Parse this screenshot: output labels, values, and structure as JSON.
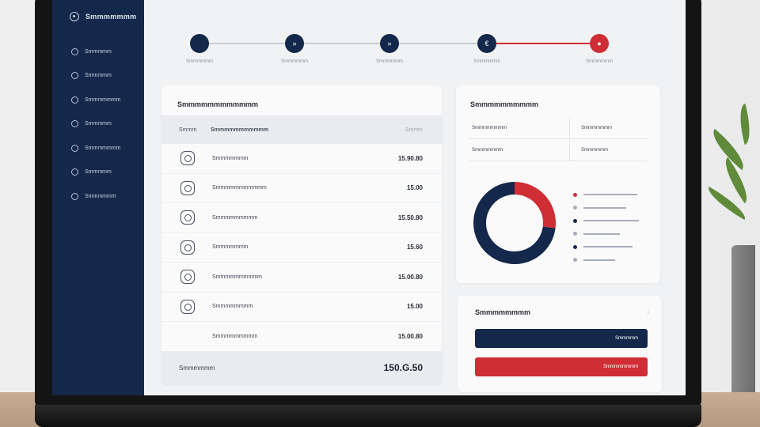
{
  "colors": {
    "navy": "#13284a",
    "accent": "#cf2e35",
    "muted": "#a7adb8"
  },
  "sidebar": {
    "brand": "Smmmmmmm",
    "items": [
      {
        "label": "Smmmmm",
        "icon": "circle-icon"
      },
      {
        "label": "Smmmmm",
        "icon": "circle-icon"
      },
      {
        "label": "Smmmmmmm",
        "icon": "circle-icon"
      },
      {
        "label": "Smmmmm",
        "icon": "circle-icon"
      },
      {
        "label": "Smmmmmmm",
        "icon": "circle-icon"
      },
      {
        "label": "Smmmmm",
        "icon": "circle-icon"
      },
      {
        "label": "Smmmmmm",
        "icon": "circle-icon"
      }
    ]
  },
  "stepper": {
    "steps": [
      {
        "label": "Smmmmmm",
        "symbol": "",
        "state": "done"
      },
      {
        "label": "Smmmmmm",
        "symbol": "»",
        "state": "done"
      },
      {
        "label": "Smmmmmm",
        "symbol": "»",
        "state": "done"
      },
      {
        "label": "Smmmmmm",
        "symbol": "€",
        "state": "done"
      },
      {
        "label": "Smmmmmm",
        "symbol": "●",
        "state": "current"
      }
    ]
  },
  "transactions": {
    "title": "Smmmmmmmmmmmm",
    "col_icon": "Smmm",
    "col_name": "Smmmmmmmmmmm",
    "col_amount": "Smmm",
    "rows": [
      {
        "name": "Smmmmmmm",
        "amount": "15.90.80"
      },
      {
        "name": "Smmmmmmmmmmm",
        "amount": "15.00"
      },
      {
        "name": "Smmmmmmmmm",
        "amount": "15.50.80"
      },
      {
        "name": "Smmmmmmm",
        "amount": "15.60"
      },
      {
        "name": "Smmmmmmmmmm",
        "amount": "15.00.80"
      },
      {
        "name": "Smmmmmmmm",
        "amount": "15.00"
      },
      {
        "name": "Smmmmmmmmm",
        "amount": "15.00.80"
      }
    ],
    "total_label": "Smmmmmm",
    "total_value": "150.G.50"
  },
  "summary": {
    "title": "Smmmmmmmmmm",
    "rows": [
      {
        "left": "Smmmmmmmm",
        "right": "Smmmmmmm"
      },
      {
        "left": "Smmmmmmm",
        "right": "Smmmmmm"
      }
    ],
    "donut": {
      "segments": [
        {
          "value": 73,
          "color": "#13284a"
        },
        {
          "value": 27,
          "color": "#cf2e35"
        }
      ]
    },
    "legend": [
      {
        "color": "#cf2e35",
        "bar": 68
      },
      {
        "color": "#a7adb8",
        "bar": 54
      },
      {
        "color": "#13284a",
        "bar": 70
      },
      {
        "color": "#a7adb8",
        "bar": 46
      },
      {
        "color": "#13284a",
        "bar": 62
      },
      {
        "color": "#a7adb8",
        "bar": 40
      }
    ]
  },
  "actions": {
    "title": "Smmmmmmmm",
    "chevron": "›",
    "primary_label": "Smmmmm",
    "danger_label": "Smmmmmmmm"
  }
}
